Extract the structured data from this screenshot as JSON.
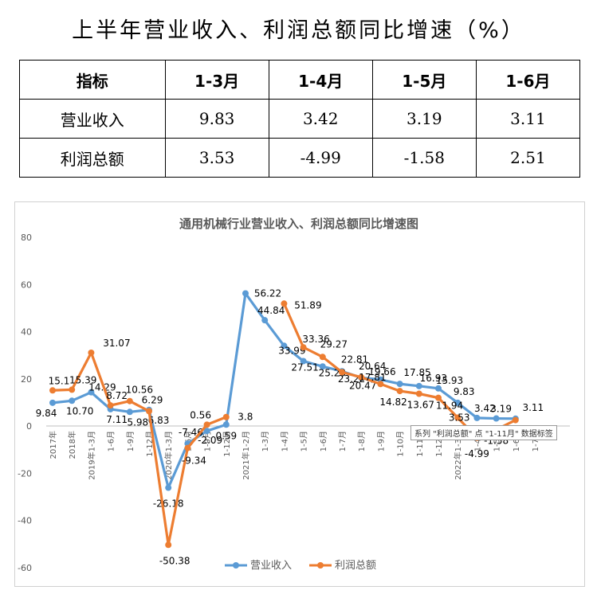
{
  "page": {
    "title": "上半年营业收入、利润总额同比增速（%）"
  },
  "table": {
    "headers": [
      "指标",
      "1-3月",
      "1-4月",
      "1-5月",
      "1-6月"
    ],
    "rows": [
      {
        "label": "营业收入",
        "values": [
          "9.83",
          "3.42",
          "3.19",
          "3.11"
        ]
      },
      {
        "label": "利润总额",
        "values": [
          "3.53",
          "-4.99",
          "-1.58",
          "2.51"
        ]
      }
    ]
  },
  "chart_data": {
    "type": "line",
    "title": "通用机械行业营业收入、利润总额同比增速图",
    "ylim": [
      -60,
      80
    ],
    "yticks": [
      80,
      60,
      40,
      20,
      0,
      -20,
      -40,
      -60
    ],
    "categories": [
      "2017年",
      "2018年",
      "2019年1-3月",
      "1-6月",
      "1-9月",
      "1-12月",
      "2020年1-3月",
      "1-6月",
      "1-9月",
      "1-12月",
      "2021年1-2月",
      "1-3月",
      "1-4月",
      "1-5月",
      "1-6月",
      "1-7月",
      "1-8月",
      "1-9月",
      "1-10月",
      "1-11月",
      "1-12月",
      "2022年1-3月",
      "1-4月",
      "1-5月",
      "1-6月",
      "1-7月"
    ],
    "series": [
      {
        "name": "营业收入",
        "color": "#5b9bd5",
        "values": [
          9.84,
          10.7,
          14.29,
          7.11,
          5.98,
          6.83,
          -26.18,
          -7.46,
          -2.09,
          0.59,
          56.22,
          44.84,
          33.99,
          27.51,
          25.23,
          23.22,
          20.47,
          19.66,
          17.85,
          16.93,
          15.93,
          9.83,
          3.42,
          3.19,
          3.11,
          null
        ],
        "labels": [
          "9.84",
          "10.70",
          "14.29",
          "7.11",
          "5.98",
          "6.83",
          "-26.18",
          "-7.46",
          "-2.09",
          "0.59",
          "56.22",
          "44.84",
          "33.99",
          "27.51",
          "25.23",
          "23.22",
          "20.47",
          "19.66",
          "17.85",
          "16.93",
          "15.93",
          "9.83",
          "3.42",
          "3.19",
          "3.11",
          null
        ]
      },
      {
        "name": "利润总额",
        "color": "#ed7d31",
        "values": [
          15.1,
          15.39,
          31.07,
          8.72,
          10.56,
          6.29,
          -50.38,
          -9.34,
          0.56,
          3.8,
          null,
          null,
          51.89,
          33.36,
          29.27,
          22.81,
          20.64,
          17.81,
          14.82,
          13.67,
          11.94,
          3.53,
          -4.99,
          -1.58,
          2.51,
          null
        ],
        "labels": [
          "15.1",
          "15.39",
          "31.07",
          "8.72",
          "10.56",
          "6.29",
          "-50.38",
          "-9.34",
          "0.56",
          "3.8",
          null,
          null,
          "51.89",
          "33.36",
          "29.27",
          "22.81",
          "20.64",
          "17.81",
          "14.82",
          "13.67",
          "11.94",
          "3.53",
          "-4.99",
          "-1.58",
          null,
          null
        ]
      }
    ],
    "legend": "bottom",
    "tooltip": "系列 \"利润总额\" 点 \"1-11月\" 数据标签"
  }
}
